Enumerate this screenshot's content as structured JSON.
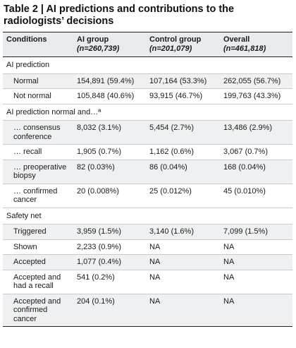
{
  "title": "Table 2 | AI predictions and contributions to the radiologists’ decisions",
  "header": {
    "conditions": "Conditions",
    "ai_group": "AI group",
    "ai_group_n": "(n=260,739)",
    "control_group": "Control group",
    "control_group_n": "(n=201,079)",
    "overall": "Overall",
    "overall_n": "(n=461,818)"
  },
  "rows": [
    {
      "type": "section",
      "label": "AI prediction"
    },
    {
      "type": "data",
      "label": "Normal",
      "ai": "154,891 (59.4%)",
      "control": "107,164 (53.3%)",
      "overall": "262,055 (56.7%)"
    },
    {
      "type": "data",
      "label": "Not normal",
      "ai": "105,848 (40.6%)",
      "control": "93,915 (46.7%)",
      "overall": "199,763 (43.3%)"
    },
    {
      "type": "section",
      "label": "AI prediction normal and…ª"
    },
    {
      "type": "data",
      "label": "… consensus conference",
      "ai": "8,032 (3.1%)",
      "control": "5,454 (2.7%)",
      "overall": "13,486 (2.9%)"
    },
    {
      "type": "data",
      "label": "… recall",
      "ai": "1,905 (0.7%)",
      "control": "1,162 (0.6%)",
      "overall": "3,067 (0.7%)"
    },
    {
      "type": "data",
      "label": "… preoperative biopsy",
      "ai": "82 (0.03%)",
      "control": "86 (0.04%)",
      "overall": "168 (0.04%)"
    },
    {
      "type": "data",
      "label": "… confirmed cancer",
      "ai": "20 (0.008%)",
      "control": "25 (0.012%)",
      "overall": "45 (0.010%)"
    },
    {
      "type": "section",
      "label": "Safety net"
    },
    {
      "type": "data",
      "label": "Triggered",
      "ai": "3,959 (1.5%)",
      "control": "3,140 (1.6%)",
      "overall": "7,099 (1.5%)"
    },
    {
      "type": "data",
      "label": "Shown",
      "ai": "2,233 (0.9%)",
      "control": "NA",
      "overall": "NA"
    },
    {
      "type": "data",
      "label": "Accepted",
      "ai": "1,077 (0.4%)",
      "control": "NA",
      "overall": "NA"
    },
    {
      "type": "data",
      "label": "Accepted and had a recall",
      "ai": "541 (0.2%)",
      "control": "NA",
      "overall": "NA"
    },
    {
      "type": "data",
      "label": "Accepted and confirmed cancer",
      "ai": "204 (0.1%)",
      "control": "NA",
      "overall": "NA"
    }
  ]
}
